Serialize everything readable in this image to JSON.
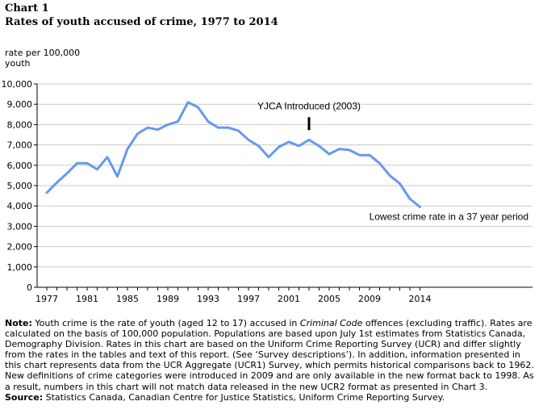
{
  "header": {
    "chart_label": "Chart 1",
    "title": "Rates of youth accused of crime, 1977 to 2014"
  },
  "chart_data": {
    "type": "line",
    "title": "Rates of youth accused of crime, 1977 to 2014",
    "ylabel": "rate per 100,000 youth",
    "xlabel": "",
    "ylim": [
      0,
      10000
    ],
    "yticks": [
      "0",
      "1,000",
      "2,000",
      "3,000",
      "4,000",
      "5,000",
      "6,000",
      "7,000",
      "8,000",
      "9,000",
      "10,000"
    ],
    "xticks": [
      "1977",
      "1981",
      "1985",
      "1989",
      "1993",
      "1997",
      "2001",
      "2005",
      "2009",
      "2014"
    ],
    "grid": true,
    "legend": "none",
    "line_color": "#6699ee",
    "x": [
      1977,
      1978,
      1979,
      1980,
      1981,
      1982,
      1983,
      1984,
      1985,
      1986,
      1987,
      1988,
      1989,
      1990,
      1991,
      1992,
      1993,
      1994,
      1995,
      1996,
      1997,
      1998,
      1999,
      2000,
      2001,
      2002,
      2003,
      2004,
      2005,
      2006,
      2007,
      2008,
      2009,
      2010,
      2011,
      2012,
      2013,
      2014
    ],
    "series": [
      {
        "values": [
          4650,
          5150,
          5600,
          6100,
          6100,
          5800,
          6400,
          5450,
          6800,
          7550,
          7850,
          7750,
          8000,
          8150,
          9100,
          8850,
          8150,
          7850,
          7850,
          7700,
          7250,
          6950,
          6400,
          6900,
          7150,
          6950,
          7250,
          6950,
          6550,
          6800,
          6750,
          6500,
          6500,
          6100,
          5500,
          5100,
          4350,
          3950
        ]
      }
    ],
    "annotations": [
      {
        "text": "YJCA Introduced (2003)",
        "x": 2003,
        "y": 7250
      },
      {
        "text": "Lowest crime rate in a 37 year period",
        "x": 2014,
        "y": 3950
      }
    ]
  },
  "notes": {
    "note_label": "Note:",
    "note_part1": " Youth crime is the rate of youth (aged 12 to 17) accused in ",
    "note_italic": "Criminal Code",
    "note_part2": " offences (excluding traffic). Rates are calculated on the basis of 100,000 population. Populations are based upon July 1st estimates from Statistics Canada, Demography Division. Rates in this chart are based on the Uniform Crime Reporting Survey (UCR) and differ slightly from the rates in the tables and text of this report. (See ‘Survey descriptions’). In addition, information presented in this chart represents data from the UCR Aggregate (UCR1) Survey, which permits historical comparisons back to 1962. New definitions of crime categories were introduced in 2009 and are only available in the new format back to 1998. As a result, numbers in this chart will not match data released in the new UCR2 format as presented in Chart 3.",
    "source_label": "Source:",
    "source_text": " Statistics Canada, Canadian Centre for Justice Statistics, Uniform Crime Reporting Survey."
  }
}
